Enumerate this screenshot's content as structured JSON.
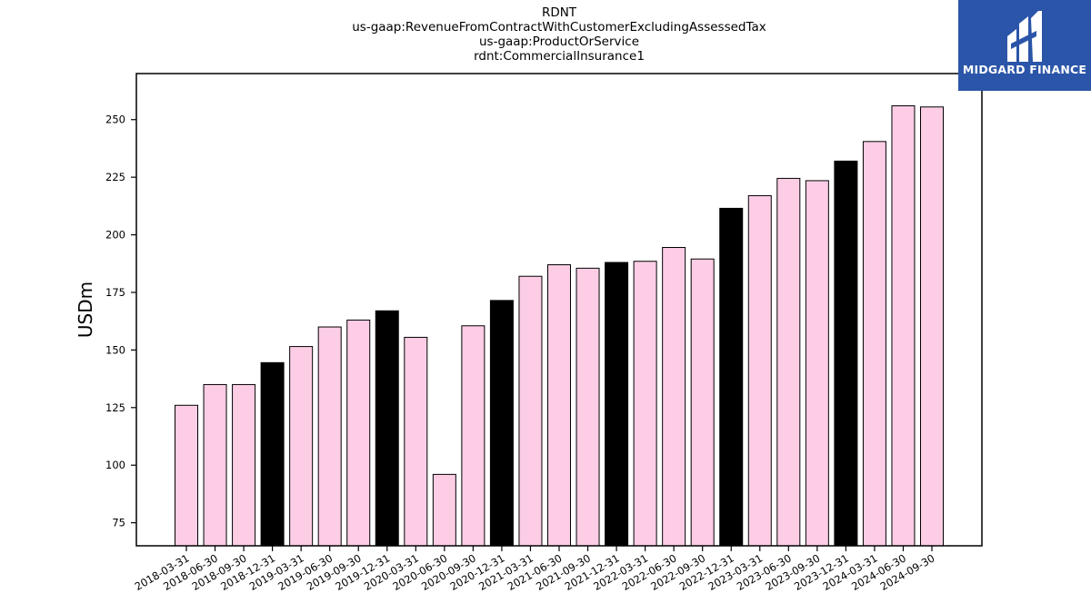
{
  "title_lines": [
    "RDNT",
    "us-gaap:RevenueFromContractWithCustomerExcludingAssessedTax",
    "us-gaap:ProductOrService",
    "rdnt:CommercialInsurance1"
  ],
  "logo": {
    "text": "MIDGARD FINANCE",
    "background": "#2b55a8"
  },
  "chart_data": {
    "type": "bar",
    "title": "RDNT",
    "ylabel": "USDm",
    "xlabel": "",
    "ylim": [
      65,
      270
    ],
    "yticks": [
      75,
      100,
      125,
      150,
      175,
      200,
      225,
      250
    ],
    "grid": false,
    "colors": {
      "quarter": "#fccde5",
      "year_end": "#000000",
      "edge": "#000000"
    },
    "categories": [
      "2018-03-31",
      "2018-06-30",
      "2018-09-30",
      "2018-12-31",
      "2019-03-31",
      "2019-06-30",
      "2019-09-30",
      "2019-12-31",
      "2020-03-31",
      "2020-06-30",
      "2020-09-30",
      "2020-12-31",
      "2021-03-31",
      "2021-06-30",
      "2021-09-30",
      "2021-12-31",
      "2022-03-31",
      "2022-06-30",
      "2022-09-30",
      "2022-12-31",
      "2023-03-31",
      "2023-06-30",
      "2023-09-30",
      "2023-12-31",
      "2024-03-31",
      "2024-06-30",
      "2024-09-30"
    ],
    "values": [
      126,
      135,
      135,
      144.5,
      151.5,
      160,
      163,
      167,
      155.5,
      96,
      160.5,
      171.5,
      182,
      187,
      185.5,
      188,
      188.5,
      194.5,
      189.5,
      211.5,
      217,
      224.5,
      223.5,
      232,
      240.5,
      256,
      255.5
    ]
  }
}
